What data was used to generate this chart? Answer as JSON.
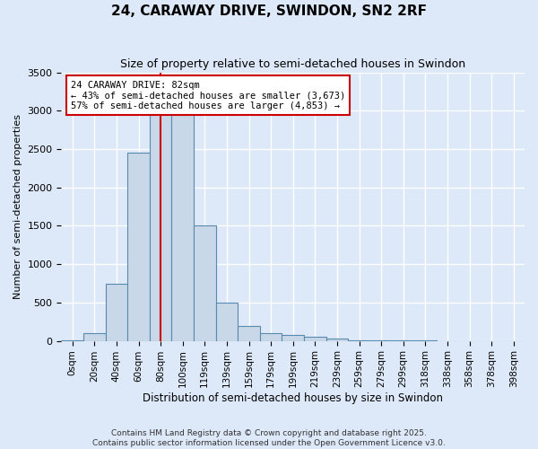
{
  "title_line1": "24, CARAWAY DRIVE, SWINDON, SN2 2RF",
  "title_line2": "Size of property relative to semi-detached houses in Swindon",
  "xlabel": "Distribution of semi-detached houses by size in Swindon",
  "ylabel": "Number of semi-detached properties",
  "bin_labels": [
    "0sqm",
    "20sqm",
    "40sqm",
    "60sqm",
    "80sqm",
    "100sqm",
    "119sqm",
    "139sqm",
    "159sqm",
    "179sqm",
    "199sqm",
    "219sqm",
    "239sqm",
    "259sqm",
    "279sqm",
    "299sqm",
    "318sqm",
    "338sqm",
    "358sqm",
    "378sqm",
    "398sqm"
  ],
  "bar_values": [
    10,
    100,
    750,
    2450,
    3000,
    2980,
    1500,
    500,
    200,
    100,
    75,
    50,
    25,
    10,
    5,
    3,
    2,
    1,
    1,
    0,
    0
  ],
  "bar_color": "#c8d8e8",
  "bar_edge_color": "#5a8ab0",
  "vline_x": 4,
  "annotation_text": "24 CARAWAY DRIVE: 82sqm\n← 43% of semi-detached houses are smaller (3,673)\n57% of semi-detached houses are larger (4,853) →",
  "vline_color": "#cc0000",
  "annotation_box_color": "#ffffff",
  "annotation_box_edge": "#cc0000",
  "ylim": [
    0,
    3500
  ],
  "yticks": [
    0,
    500,
    1000,
    1500,
    2000,
    2500,
    3000,
    3500
  ],
  "background_color": "#dde8f8",
  "grid_color": "#ffffff",
  "footer_line1": "Contains HM Land Registry data © Crown copyright and database right 2025.",
  "footer_line2": "Contains public sector information licensed under the Open Government Licence v3.0."
}
